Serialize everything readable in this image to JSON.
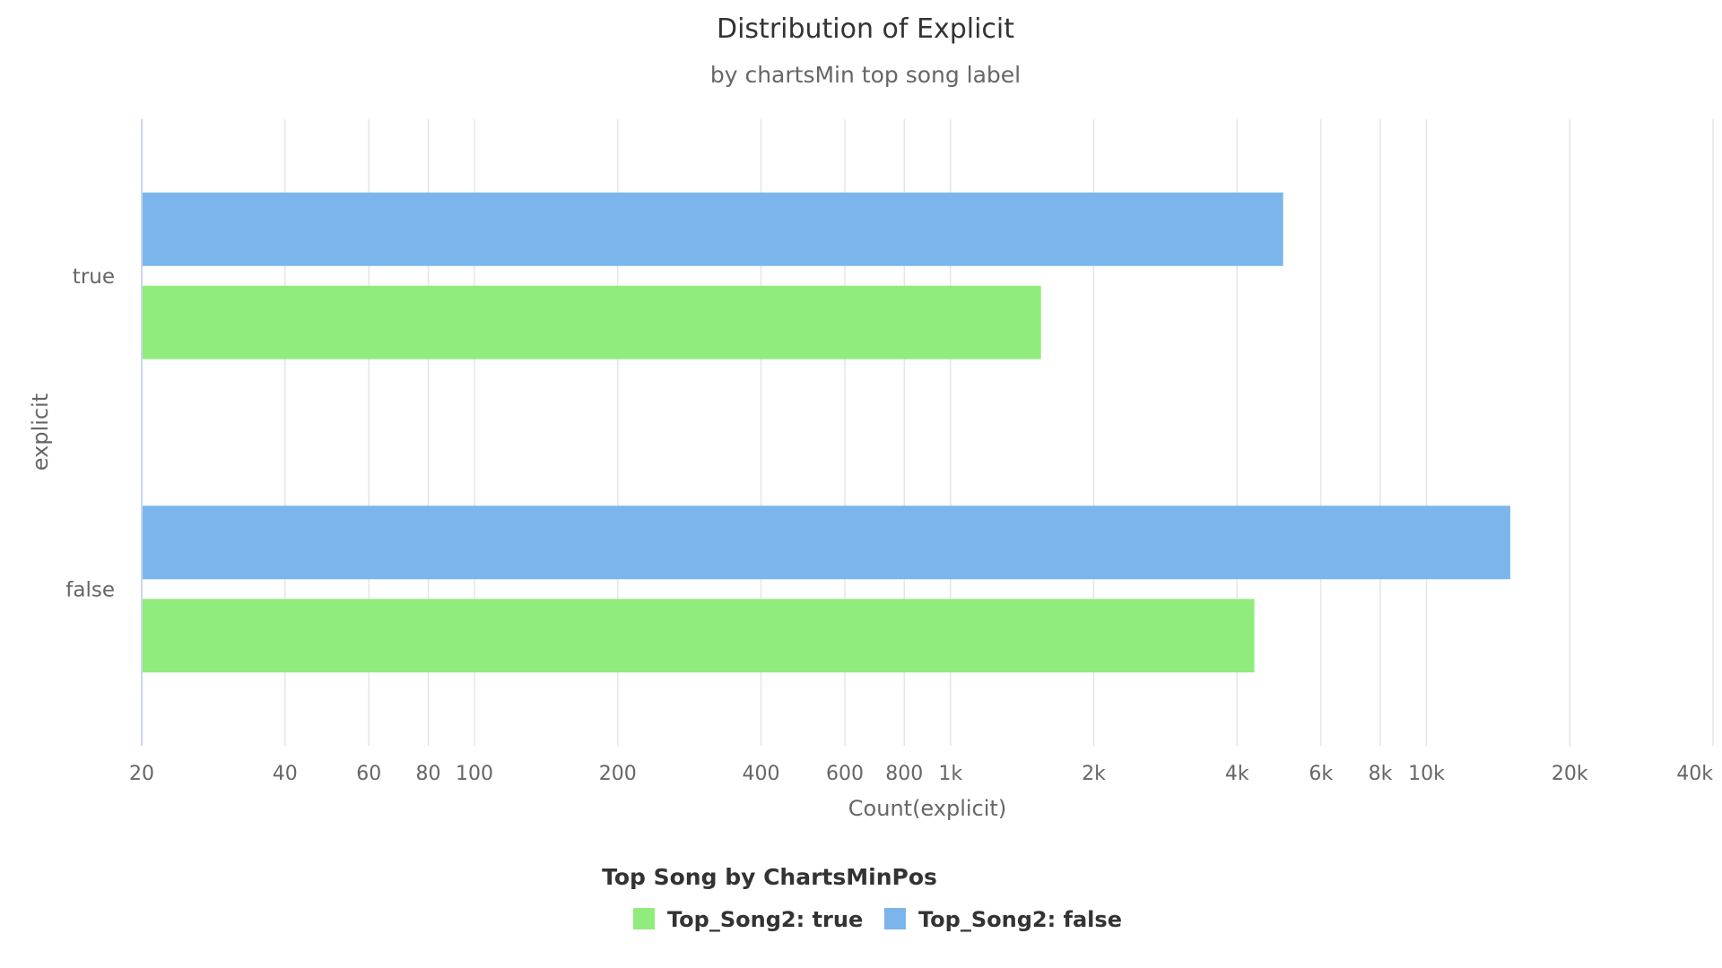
{
  "chart_data": {
    "type": "bar",
    "orientation": "horizontal",
    "title": "Distribution of Explicit",
    "subtitle": "by chartsMin top song label",
    "xlabel": "Count(explicit)",
    "ylabel": "explicit",
    "x_scale": "log",
    "xlim": [
      20,
      40000
    ],
    "x_ticks": [
      20,
      40,
      60,
      80,
      100,
      200,
      400,
      600,
      800,
      1000,
      2000,
      4000,
      6000,
      8000,
      10000,
      20000,
      40000
    ],
    "x_tick_labels": [
      "20",
      "40",
      "60",
      "80",
      "100",
      "200",
      "400",
      "600",
      "800",
      "1k",
      "2k",
      "4k",
      "6k",
      "8k",
      "10k",
      "20k",
      "40k"
    ],
    "categories": [
      "true",
      "false"
    ],
    "grid": true,
    "legend_title": "Top Song by ChartsMinPos",
    "legend_position": "bottom",
    "series": [
      {
        "name": "Top_Song2: true",
        "color": "#90ed7d",
        "values": [
          1550,
          4350
        ]
      },
      {
        "name": "Top_Song2: false",
        "color": "#7cb5ec",
        "values": [
          5000,
          15000
        ]
      }
    ]
  }
}
